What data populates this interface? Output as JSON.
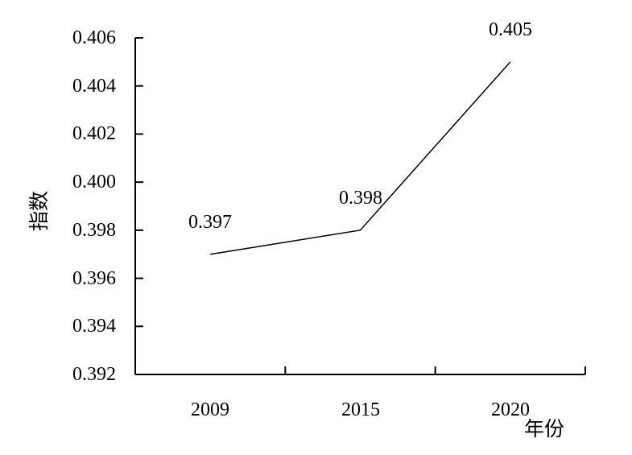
{
  "figure": {
    "background": "#ffffff",
    "ink": "#000000"
  },
  "chart_data": {
    "type": "line",
    "title": "",
    "xlabel": "年份",
    "ylabel": "指数",
    "categories": [
      "2009",
      "2015",
      "2020"
    ],
    "series": [
      {
        "name": "指数",
        "values": [
          0.397,
          0.398,
          0.405
        ]
      }
    ],
    "point_labels": [
      "0.397",
      "0.398",
      "0.405"
    ],
    "ylim": [
      0.392,
      0.406
    ],
    "ytick_step": 0.002,
    "ytick_labels": [
      "0.392",
      "0.394",
      "0.396",
      "0.398",
      "0.400",
      "0.402",
      "0.404",
      "0.406"
    ],
    "grid": false,
    "legend": "none",
    "line_color": "#000000",
    "axis_color": "#000000"
  }
}
